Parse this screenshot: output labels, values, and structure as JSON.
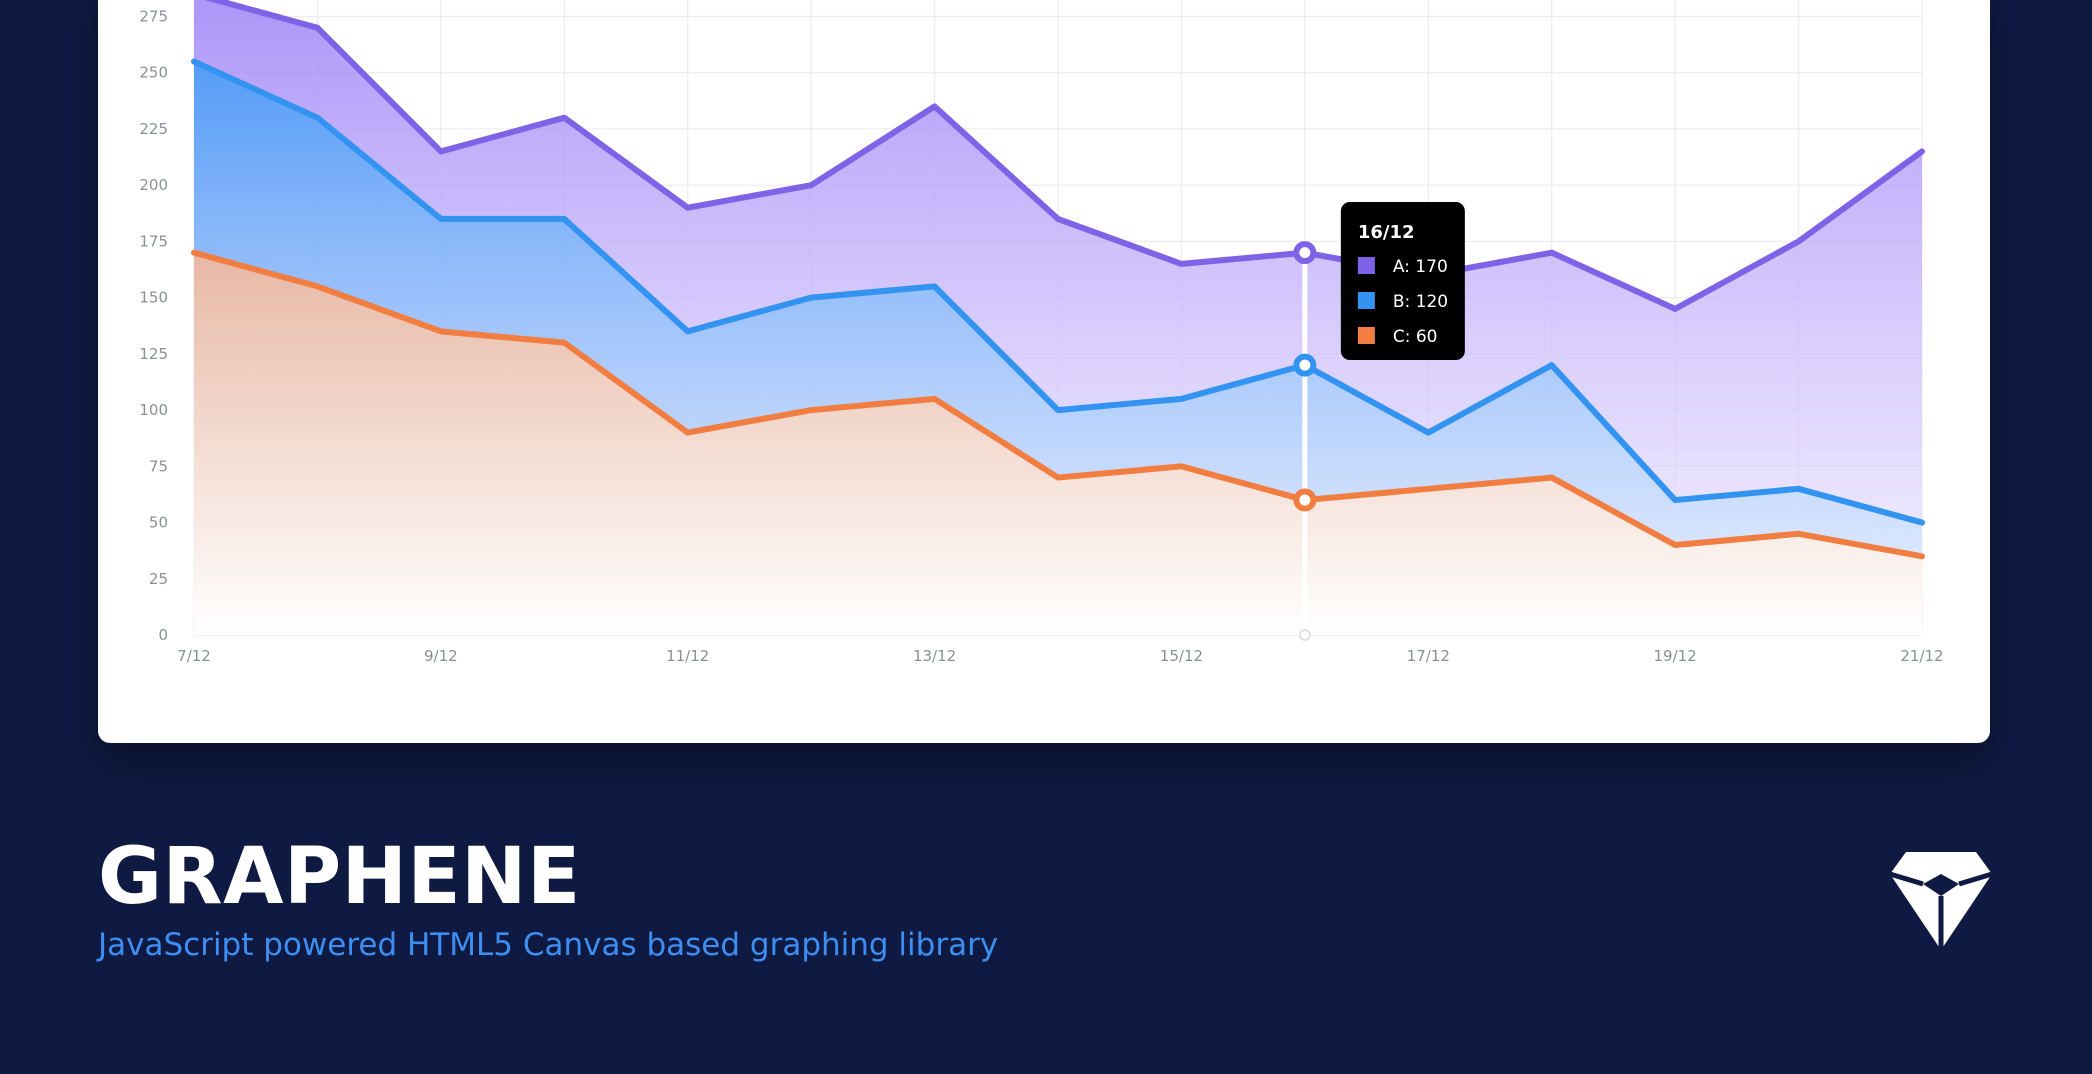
{
  "brand": {
    "title": "GRAPHENE",
    "subtitle": "JavaScript powered HTML5 Canvas based graphing library",
    "logo_icon": "diamond-gem-icon"
  },
  "colors": {
    "background": "#0f1a43",
    "series_a": "#7e63e6",
    "series_b": "#3294f0",
    "series_c": "#f27d40",
    "subtitle": "#3d8ef0"
  },
  "chart_data": {
    "type": "area",
    "x": [
      "7/12",
      "8/12",
      "9/12",
      "10/12",
      "11/12",
      "12/12",
      "13/12",
      "14/12",
      "15/12",
      "16/12",
      "17/12",
      "18/12",
      "19/12",
      "20/12",
      "21/12"
    ],
    "x_tick_labels": [
      "7/12",
      "9/12",
      "11/12",
      "13/12",
      "15/12",
      "17/12",
      "19/12",
      "21/12"
    ],
    "y_ticks": [
      0,
      25,
      50,
      75,
      100,
      125,
      150,
      175,
      200,
      225,
      250,
      275
    ],
    "ylim": [
      0,
      285
    ],
    "grid": true,
    "series": [
      {
        "name": "A",
        "color": "#7e63e6",
        "values": [
          285,
          270,
          215,
          230,
          190,
          200,
          235,
          185,
          165,
          170,
          160,
          170,
          145,
          175,
          215
        ]
      },
      {
        "name": "B",
        "color": "#3294f0",
        "values": [
          255,
          230,
          185,
          185,
          135,
          150,
          155,
          100,
          105,
          120,
          90,
          120,
          60,
          65,
          50
        ]
      },
      {
        "name": "C",
        "color": "#f27d40",
        "values": [
          170,
          155,
          135,
          130,
          90,
          100,
          105,
          70,
          75,
          60,
          65,
          70,
          40,
          45,
          35
        ]
      }
    ],
    "tooltip": {
      "index": 9,
      "title": "16/12",
      "rows": [
        "A: 170",
        "B: 120",
        "C: 60"
      ]
    }
  }
}
